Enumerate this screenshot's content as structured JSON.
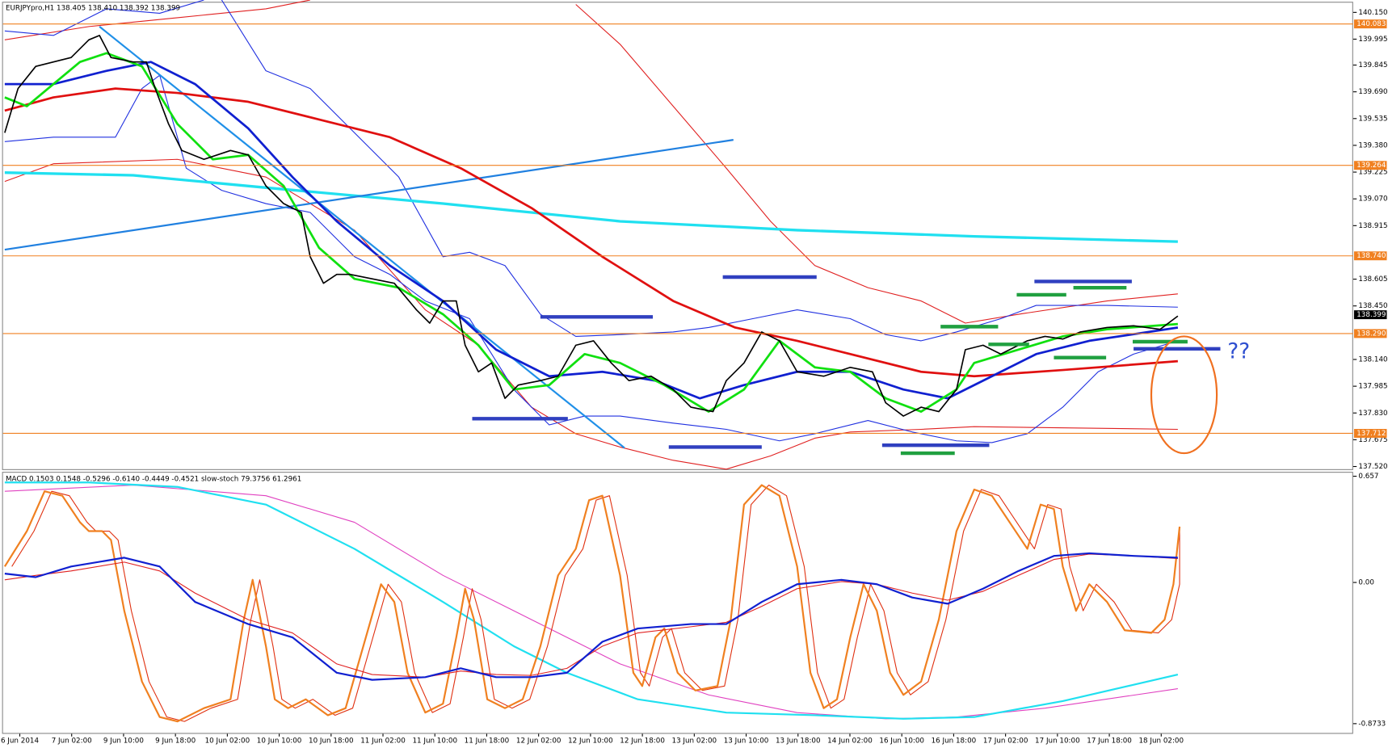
{
  "chart_data": {
    "type": "candlestick",
    "header": "EURJPYpro,H1  138.405 138.410 138.392 138.399",
    "ylim": [
      137.52,
      140.15
    ],
    "yticks": [
      {
        "value": 140.15,
        "label": "140.150"
      },
      139.995,
      139.845,
      {
        "value": 139.69,
        "label": "139.690"
      },
      139.535,
      {
        "value": 139.38,
        "label": "139.380"
      },
      139.225,
      {
        "value": 139.07,
        "label": "139.070"
      },
      138.915,
      138.605,
      {
        "value": 138.45,
        "label": "138.450"
      },
      {
        "value": 138.14,
        "label": "138.140"
      },
      137.985,
      {
        "value": 137.83,
        "label": "137.830"
      },
      137.675,
      {
        "value": 137.52,
        "label": "137.520"
      }
    ],
    "levels": [
      140.083,
      139.264,
      {
        "value": 138.74,
        "label": "138.740"
      },
      {
        "value": 138.29,
        "label": "138.290"
      },
      137.712
    ],
    "current_price": 138.399,
    "annotation": "??",
    "x_labels": [
      "6 Jun 2014",
      "7 Jun 02:00",
      "9 Jun 10:00",
      "9 Jun 18:00",
      "10 Jun 02:00",
      "10 Jun 10:00",
      "10 Jun 18:00",
      "11 Jun 02:00",
      "11 Jun 10:00",
      "11 Jun 18:00",
      "12 Jun 02:00",
      "12 Jun 10:00",
      "12 Jun 18:00",
      "13 Jun 02:00",
      "13 Jun 10:00",
      "13 Jun 18:00",
      "14 Jun 02:00",
      "16 Jun 10:00",
      "16 Jun 18:00",
      "17 Jun 02:00",
      "17 Jun 10:00",
      "17 Jun 18:00",
      "18 Jun 02:00"
    ],
    "indicator": {
      "header": "MACD 0.1503 0.1548 -0.5296 -0.6140 -0.4449 -0.4521  slow-stoch 79.3756 61.2961",
      "ylim": [
        -0.8733,
        0.657
      ],
      "yticks": [
        0.657,
        {
          "value": 0,
          "label": "0.00"
        },
        -0.8733
      ]
    }
  }
}
